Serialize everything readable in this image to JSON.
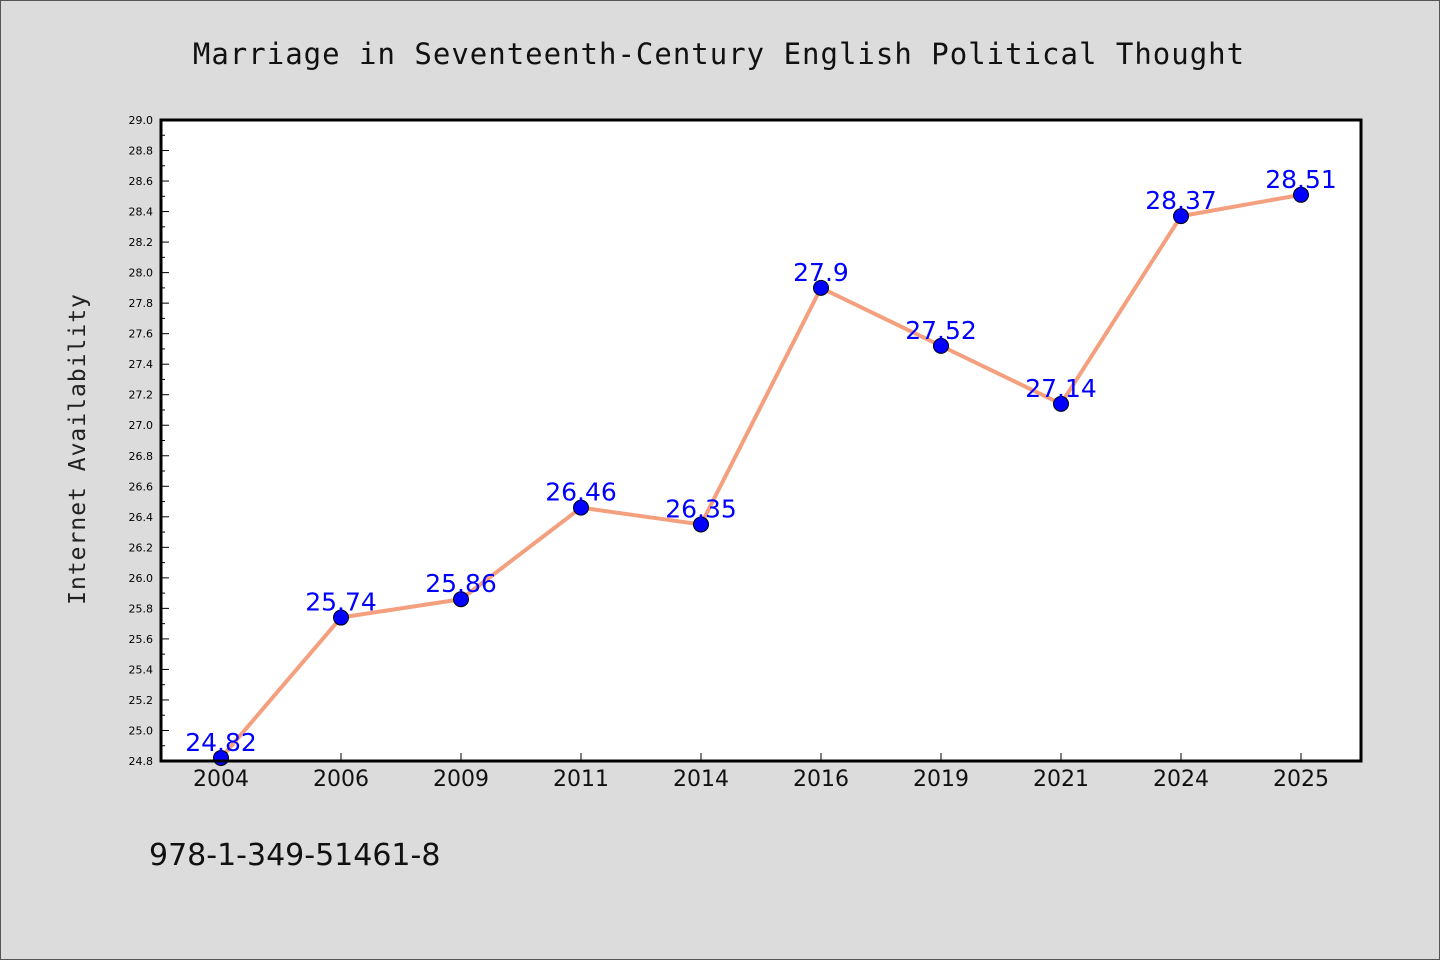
{
  "chart_data": {
    "type": "line",
    "title": "Marriage in Seventeenth-Century English Political Thought",
    "xlabel": "",
    "ylabel": "Internet Availability",
    "categories": [
      "2004",
      "2006",
      "2009",
      "2011",
      "2014",
      "2016",
      "2019",
      "2021",
      "2024",
      "2025"
    ],
    "series": [
      {
        "values": [
          24.82,
          25.74,
          25.86,
          26.46,
          26.35,
          27.9,
          27.52,
          27.14,
          28.37,
          28.51
        ],
        "data_labels": [
          "24.82",
          "25.74",
          "25.86",
          "26.46",
          "26.35",
          "27.9",
          "27.52",
          "27.14",
          "28.37",
          "28.51"
        ],
        "line_color": "#f4a07f",
        "marker_color": "#0000ff"
      }
    ],
    "ylim": [
      24.8,
      29.0
    ],
    "yticks": [
      "24.8",
      "25.0",
      "25.2",
      "25.4",
      "25.6",
      "25.8",
      "26.0",
      "26.2",
      "26.4",
      "26.6",
      "26.8",
      "27.0",
      "27.2",
      "27.4",
      "27.6",
      "27.8",
      "28.0",
      "28.2",
      "28.4",
      "28.6",
      "28.8",
      "29.0"
    ],
    "grid": false,
    "legend": "none"
  },
  "footer": {
    "isbn": "978-1-349-51461-8"
  },
  "colors": {
    "background": "#dcdcdc",
    "plot_background": "#ffffff",
    "line": "#f4a07f",
    "marker": "#0000ff",
    "data_label": "#0000ff"
  }
}
